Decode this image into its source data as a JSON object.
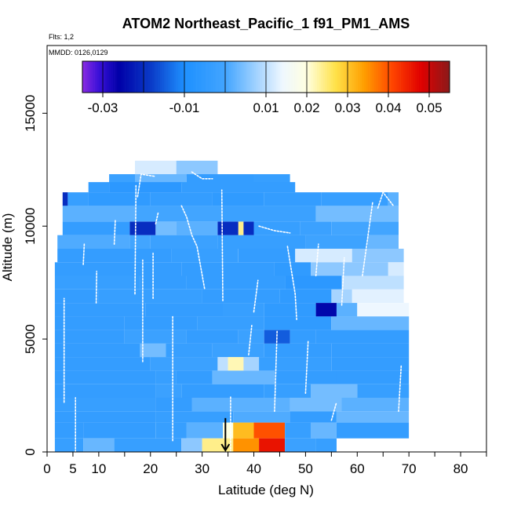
{
  "chart_data": {
    "type": "heatmap",
    "title": "ATOM2 Northeast_Pacific_1 f91_PM1_AMS",
    "flights_note": "Flts: 1,2",
    "mmdd_note": "MMDD: 0126,0129",
    "xlabel": "Latitude (deg N)",
    "ylabel": "Altitude (m)",
    "xlim": [
      0,
      85
    ],
    "ylim": [
      0,
      18000
    ],
    "x_ticks": [
      0,
      5,
      10,
      20,
      30,
      40,
      50,
      60,
      70,
      80
    ],
    "x_tick_labels": [
      "0",
      "5",
      "10",
      "20",
      "30",
      "40",
      "50",
      "60",
      "70",
      "80"
    ],
    "y_ticks": [
      0,
      5000,
      10000,
      15000
    ],
    "y_tick_labels": [
      "0",
      "5000",
      "10000",
      "15000"
    ],
    "colorbar": {
      "range": [
        -0.035,
        0.055
      ],
      "tick_values": [
        -0.03,
        -0.01,
        0.01,
        0.02,
        0.03,
        0.04,
        0.05
      ],
      "tick_labels": [
        "-0.03",
        "-0.01",
        "0.01",
        "0.02",
        "0.03",
        "0.04",
        "0.05"
      ],
      "stops": [
        {
          "v": -0.035,
          "c": "#8a2be2"
        },
        {
          "v": -0.031,
          "c": "#3a10d8"
        },
        {
          "v": -0.026,
          "c": "#0000a8"
        },
        {
          "v": -0.018,
          "c": "#0a3cc8"
        },
        {
          "v": -0.01,
          "c": "#1e90ff"
        },
        {
          "v": 0.0,
          "c": "#42a5ff"
        },
        {
          "v": 0.008,
          "c": "#a6d4ff"
        },
        {
          "v": 0.014,
          "c": "#eef7ff"
        },
        {
          "v": 0.02,
          "c": "#ffffe0"
        },
        {
          "v": 0.027,
          "c": "#ffe24a"
        },
        {
          "v": 0.034,
          "c": "#ff9f00"
        },
        {
          "v": 0.041,
          "c": "#ff4400"
        },
        {
          "v": 0.048,
          "c": "#e00000"
        },
        {
          "v": 0.055,
          "c": "#8b1a1a"
        }
      ]
    },
    "marker": {
      "type": "arrow",
      "lat": 34.5,
      "alt": 1500
    },
    "rows": [
      {
        "alt": [
          12200,
          12900
        ],
        "segs": [
          [
            17,
            25,
            0.012
          ],
          [
            25,
            33,
            0.006
          ]
        ]
      },
      {
        "alt": [
          11900,
          12300
        ],
        "segs": [
          [
            12,
            17,
            -0.002
          ],
          [
            17,
            27,
            0.003
          ],
          [
            27,
            40,
            -0.004
          ],
          [
            40,
            47,
            -0.003
          ]
        ]
      },
      {
        "alt": [
          11500,
          11950
        ],
        "segs": [
          [
            8,
            12,
            -0.004
          ],
          [
            12,
            26,
            -0.006
          ],
          [
            26,
            48,
            -0.004
          ]
        ]
      },
      {
        "alt": [
          10900,
          11500
        ],
        "segs": [
          [
            3,
            4,
            -0.02
          ],
          [
            4,
            8,
            -0.003
          ],
          [
            8,
            20,
            -0.005
          ],
          [
            20,
            32,
            -0.004
          ],
          [
            32,
            42,
            -0.005
          ],
          [
            42,
            53,
            -0.004
          ],
          [
            53,
            66,
            -0.003
          ],
          [
            66,
            68,
            0.002
          ]
        ]
      },
      {
        "alt": [
          10200,
          10900
        ],
        "segs": [
          [
            3,
            17,
            0.002
          ],
          [
            17,
            34,
            0.0
          ],
          [
            34,
            52,
            -0.002
          ],
          [
            52,
            68,
            0.004
          ]
        ]
      },
      {
        "alt": [
          9600,
          10200
        ],
        "segs": [
          [
            3,
            16,
            -0.004
          ],
          [
            16,
            21,
            -0.02
          ],
          [
            21,
            25,
            0.004
          ],
          [
            25,
            33,
            0.002
          ],
          [
            33,
            37,
            -0.02
          ],
          [
            37,
            38,
            0.024
          ],
          [
            38,
            40,
            -0.02
          ],
          [
            40,
            49,
            -0.003
          ],
          [
            49,
            55,
            -0.002
          ],
          [
            55,
            68,
            0.0
          ]
        ]
      },
      {
        "alt": [
          9000,
          9600
        ],
        "segs": [
          [
            2,
            16,
            0.001
          ],
          [
            16,
            20,
            0.0
          ],
          [
            20,
            33,
            -0.002
          ],
          [
            33,
            50,
            -0.003
          ],
          [
            50,
            62,
            -0.001
          ],
          [
            62,
            68,
            0.003
          ]
        ]
      },
      {
        "alt": [
          8400,
          9000
        ],
        "segs": [
          [
            2,
            24,
            -0.004
          ],
          [
            24,
            37,
            -0.003
          ],
          [
            37,
            48,
            -0.004
          ],
          [
            48,
            59,
            0.012
          ],
          [
            59,
            69,
            0.006
          ]
        ]
      },
      {
        "alt": [
          7800,
          8400
        ],
        "segs": [
          [
            1.5,
            26,
            -0.004
          ],
          [
            26,
            44,
            -0.004
          ],
          [
            44,
            51,
            -0.005
          ],
          [
            51,
            66,
            0.006
          ],
          [
            66,
            69,
            0.012
          ]
        ]
      },
      {
        "alt": [
          7200,
          7800
        ],
        "segs": [
          [
            1.5,
            18,
            -0.003
          ],
          [
            18,
            27,
            -0.004
          ],
          [
            27,
            46,
            -0.004
          ],
          [
            46,
            57,
            -0.006
          ],
          [
            57,
            69,
            0.01
          ]
        ]
      },
      {
        "alt": [
          6600,
          7200
        ],
        "segs": [
          [
            1.5,
            10,
            -0.004
          ],
          [
            10,
            30,
            -0.003
          ],
          [
            30,
            45,
            -0.004
          ],
          [
            45,
            55,
            -0.005
          ],
          [
            55,
            59,
            0.008
          ],
          [
            59,
            69,
            0.013
          ]
        ]
      },
      {
        "alt": [
          6000,
          6600
        ],
        "segs": [
          [
            1.5,
            19,
            -0.004
          ],
          [
            19,
            34,
            -0.004
          ],
          [
            34,
            42,
            -0.003
          ],
          [
            42,
            52,
            -0.005
          ],
          [
            52,
            56,
            -0.025
          ],
          [
            56,
            60,
            0.002
          ],
          [
            60,
            70,
            0.014
          ]
        ]
      },
      {
        "alt": [
          5400,
          6000
        ],
        "segs": [
          [
            1.5,
            15,
            -0.004
          ],
          [
            15,
            29,
            -0.004
          ],
          [
            29,
            42,
            -0.003
          ],
          [
            42,
            55,
            -0.005
          ],
          [
            55,
            70,
            0.003
          ]
        ]
      },
      {
        "alt": [
          4800,
          5400
        ],
        "segs": [
          [
            1.5,
            15,
            -0.004
          ],
          [
            15,
            27,
            -0.002
          ],
          [
            27,
            37,
            -0.004
          ],
          [
            37,
            42,
            -0.002
          ],
          [
            42,
            47,
            -0.015
          ],
          [
            47,
            52,
            -0.004
          ],
          [
            52,
            70,
            -0.004
          ]
        ]
      },
      {
        "alt": [
          4200,
          4800
        ],
        "segs": [
          [
            1.5,
            18,
            -0.004
          ],
          [
            18,
            23,
            0.004
          ],
          [
            23,
            32,
            -0.003
          ],
          [
            32,
            42,
            -0.002
          ],
          [
            42,
            55,
            -0.004
          ],
          [
            55,
            70,
            -0.004
          ]
        ]
      },
      {
        "alt": [
          3600,
          4200
        ],
        "segs": [
          [
            1.5,
            20,
            -0.004
          ],
          [
            20,
            33,
            -0.002
          ],
          [
            33,
            35,
            0.01
          ],
          [
            35,
            38,
            0.022
          ],
          [
            38,
            41,
            0.008
          ],
          [
            41,
            55,
            -0.003
          ],
          [
            55,
            70,
            -0.004
          ]
        ]
      },
      {
        "alt": [
          3000,
          3600
        ],
        "segs": [
          [
            1.5,
            21,
            -0.004
          ],
          [
            21,
            25,
            -0.003
          ],
          [
            25,
            32,
            -0.004
          ],
          [
            32,
            44,
            0.003
          ],
          [
            44,
            56,
            -0.004
          ],
          [
            56,
            70,
            -0.004
          ]
        ]
      },
      {
        "alt": [
          2400,
          3000
        ],
        "segs": [
          [
            1.5,
            21,
            -0.004
          ],
          [
            21,
            26,
            -0.002
          ],
          [
            26,
            42,
            -0.004
          ],
          [
            42,
            51,
            -0.003
          ],
          [
            51,
            60,
            0.004
          ],
          [
            60,
            70,
            -0.003
          ]
        ]
      },
      {
        "alt": [
          1800,
          2400
        ],
        "segs": [
          [
            1.5,
            21,
            -0.003
          ],
          [
            21,
            28,
            -0.004
          ],
          [
            28,
            47,
            0.002
          ],
          [
            47,
            57,
            0.004
          ],
          [
            57,
            70,
            0.002
          ]
        ]
      },
      {
        "alt": [
          1300,
          1800
        ],
        "segs": [
          [
            1.5,
            21,
            -0.004
          ],
          [
            21,
            36,
            -0.003
          ],
          [
            36,
            47,
            0.001
          ],
          [
            47,
            56,
            -0.004
          ],
          [
            56,
            70,
            0.003
          ]
        ]
      },
      {
        "alt": [
          600,
          1300
        ],
        "segs": [
          [
            1.5,
            7,
            -0.004
          ],
          [
            7,
            21,
            -0.004
          ],
          [
            21,
            27,
            -0.003
          ],
          [
            27,
            34,
            0.002
          ],
          [
            34,
            36,
            0.02
          ],
          [
            36,
            40,
            0.031
          ],
          [
            40,
            46,
            0.04
          ],
          [
            46,
            51,
            -0.003
          ],
          [
            51,
            56,
            0.003
          ],
          [
            56,
            70,
            -0.004
          ]
        ]
      },
      {
        "alt": [
          0,
          600
        ],
        "segs": [
          [
            1.5,
            7,
            -0.003
          ],
          [
            7,
            13,
            0.003
          ],
          [
            13,
            26,
            -0.003
          ],
          [
            26,
            30,
            0.006
          ],
          [
            30,
            36,
            0.024
          ],
          [
            36,
            41,
            0.035
          ],
          [
            41,
            46,
            0.046
          ],
          [
            46,
            52,
            -0.002
          ],
          [
            52,
            56,
            -0.003
          ]
        ]
      }
    ],
    "profiles": [
      [
        [
          5.5,
          0
        ],
        [
          5.5,
          2400
        ]
      ],
      [
        [
          3.3,
          2200
        ],
        [
          3.3,
          6800
        ]
      ],
      [
        [
          7,
          8300
        ],
        [
          7.2,
          9200
        ]
      ],
      [
        [
          9.5,
          6600
        ],
        [
          9.6,
          8000
        ]
      ],
      [
        [
          13,
          9200
        ],
        [
          13.2,
          10300
        ]
      ],
      [
        [
          17,
          7000
        ],
        [
          17.2,
          11800
        ]
      ],
      [
        [
          17.5,
          11300
        ],
        [
          18.2,
          12300
        ],
        [
          21,
          12200
        ]
      ],
      [
        [
          18.5,
          4000
        ],
        [
          18.5,
          8500
        ]
      ],
      [
        [
          20.5,
          6800
        ],
        [
          20.5,
          8800
        ]
      ],
      [
        [
          21,
          10100
        ],
        [
          21.5,
          10600
        ]
      ],
      [
        [
          24.3,
          500
        ],
        [
          24.3,
          6000
        ]
      ],
      [
        [
          26,
          10900
        ],
        [
          27,
          10400
        ],
        [
          28,
          9600
        ],
        [
          29,
          9100
        ],
        [
          30.5,
          7200
        ]
      ],
      [
        [
          34,
          6700
        ],
        [
          33.8,
          11600
        ]
      ],
      [
        [
          28,
          12400
        ],
        [
          30,
          12100
        ],
        [
          32,
          12100
        ]
      ],
      [
        [
          35.5,
          0
        ],
        [
          35.5,
          2500
        ]
      ],
      [
        [
          39,
          4300
        ],
        [
          39.6,
          5600
        ]
      ],
      [
        [
          40,
          6200
        ],
        [
          40.8,
          7600
        ]
      ],
      [
        [
          41,
          10000
        ],
        [
          44,
          9800
        ],
        [
          47,
          9700
        ]
      ],
      [
        [
          44,
          1800
        ],
        [
          44.5,
          5400
        ]
      ],
      [
        [
          46.5,
          9100
        ],
        [
          48,
          7000
        ],
        [
          48.3,
          5800
        ]
      ],
      [
        [
          50,
          2600
        ],
        [
          50.5,
          4900
        ]
      ],
      [
        [
          52,
          7800
        ],
        [
          52.5,
          9200
        ]
      ],
      [
        [
          55,
          1400
        ],
        [
          56,
          2200
        ]
      ],
      [
        [
          57,
          6500
        ],
        [
          57.5,
          8600
        ]
      ],
      [
        [
          61,
          7800
        ],
        [
          63,
          11100
        ]
      ],
      [
        [
          64,
          10800
        ],
        [
          65,
          11500
        ],
        [
          67,
          10900
        ]
      ],
      [
        [
          68,
          1800
        ],
        [
          68.5,
          3800
        ]
      ]
    ],
    "grid": false,
    "colorbar_position": "top"
  }
}
